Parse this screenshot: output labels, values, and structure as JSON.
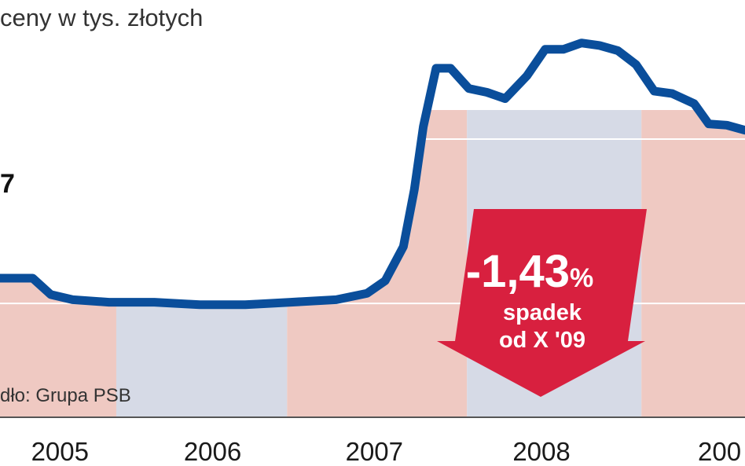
{
  "chart_data": {
    "type": "line",
    "title": "",
    "subtitle": "ceny w tys. złotych",
    "source": "dło: Grupa PSB",
    "xlabel": "",
    "ylabel": "",
    "start_value_label": "7",
    "x_ticks": [
      "2005",
      "2006",
      "2007",
      "2008",
      "200"
    ],
    "grid": true,
    "colors": {
      "line": "#0a4e9b",
      "band_pink": "#efc9c2",
      "band_blue": "#d6dae6",
      "arrow": "#d8203f",
      "gridline": "#ffffff"
    },
    "series": [
      {
        "name": "",
        "points": [
          [
            2004.5,
            2.4
          ],
          [
            2004.68,
            2.4
          ],
          [
            2004.78,
            2.27
          ],
          [
            2004.9,
            2.23
          ],
          [
            2005.1,
            2.21
          ],
          [
            2005.35,
            2.21
          ],
          [
            2005.6,
            2.19
          ],
          [
            2005.85,
            2.19
          ],
          [
            2006.1,
            2.21
          ],
          [
            2006.35,
            2.23
          ],
          [
            2006.52,
            2.28
          ],
          [
            2006.62,
            2.38
          ],
          [
            2006.72,
            2.65
          ],
          [
            2006.78,
            3.1
          ],
          [
            2006.83,
            3.6
          ],
          [
            2006.9,
            4.06
          ],
          [
            2006.98,
            4.06
          ],
          [
            2007.08,
            3.9
          ],
          [
            2007.18,
            3.87
          ],
          [
            2007.28,
            3.82
          ],
          [
            2007.4,
            4.0
          ],
          [
            2007.5,
            4.21
          ],
          [
            2007.6,
            4.21
          ],
          [
            2007.7,
            4.26
          ],
          [
            2007.8,
            4.24
          ],
          [
            2007.9,
            4.2
          ],
          [
            2008.0,
            4.09
          ],
          [
            2008.1,
            3.88
          ],
          [
            2008.2,
            3.86
          ],
          [
            2008.32,
            3.78
          ],
          [
            2008.4,
            3.62
          ],
          [
            2008.5,
            3.61
          ],
          [
            2008.6,
            3.57
          ]
        ]
      }
    ],
    "xlim": [
      2004.5,
      2008.6
    ],
    "ylim": [
      1.3,
      4.6
    ],
    "bands": [
      {
        "from": 2004.5,
        "to": 2005.14,
        "color": "pink"
      },
      {
        "from": 2005.14,
        "to": 2006.08,
        "color": "blue"
      },
      {
        "from": 2006.08,
        "to": 2007.07,
        "color": "pink"
      },
      {
        "from": 2007.07,
        "to": 2008.03,
        "color": "blue"
      },
      {
        "from": 2008.03,
        "to": 2008.6,
        "color": "pink"
      }
    ],
    "annotations": [
      {
        "text": "-1,43",
        "suffix": "%",
        "line2": "spadek",
        "line3": "od X '09"
      }
    ]
  }
}
